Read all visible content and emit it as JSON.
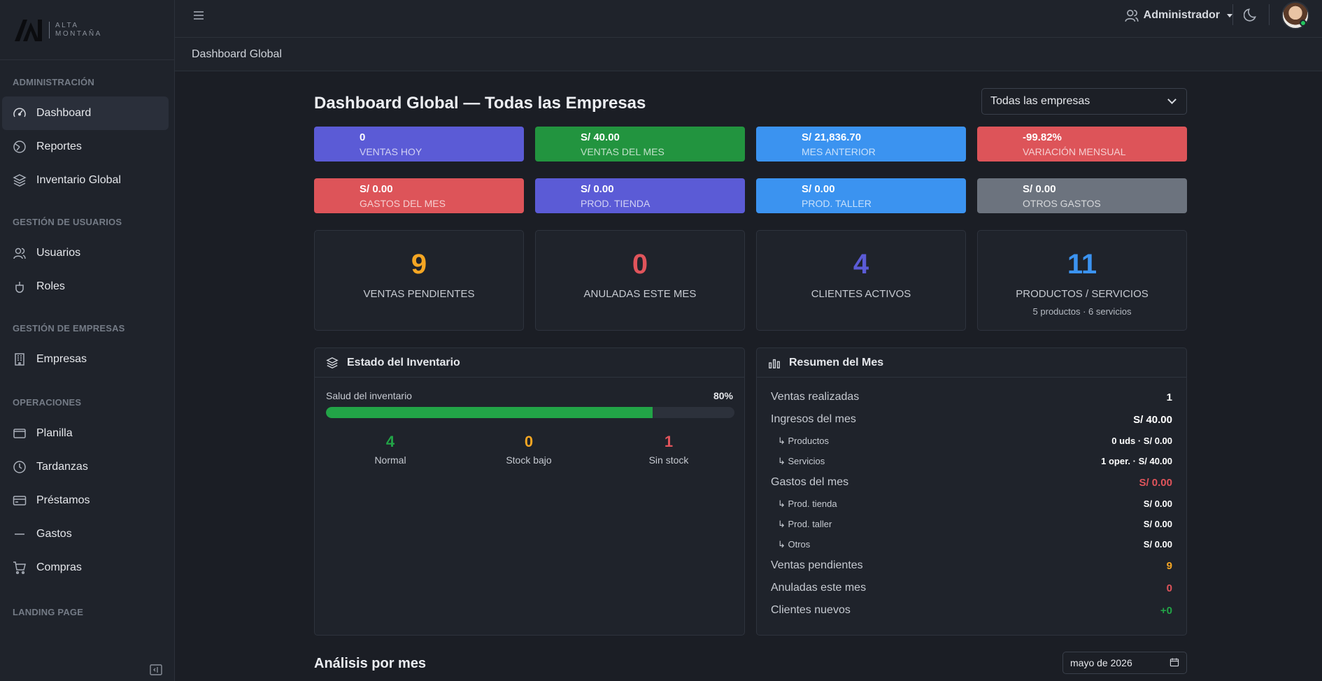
{
  "brand": {
    "line1": "ALTA",
    "line2": "MONTAÑA"
  },
  "sidebar": {
    "sections": [
      {
        "title": "ADMINISTRACIÓN",
        "items": [
          {
            "label": "Dashboard",
            "icon": "gauge-icon",
            "active": true
          },
          {
            "label": "Reportes",
            "icon": "pie-chart-icon"
          },
          {
            "label": "Inventario Global",
            "icon": "layers-icon"
          }
        ]
      },
      {
        "title": "GESTIÓN DE USUARIOS",
        "items": [
          {
            "label": "Usuarios",
            "icon": "users-icon"
          },
          {
            "label": "Roles",
            "icon": "mouse-icon"
          }
        ]
      },
      {
        "title": "GESTIÓN DE EMPRESAS",
        "items": [
          {
            "label": "Empresas",
            "icon": "building-icon"
          }
        ]
      },
      {
        "title": "OPERACIONES",
        "items": [
          {
            "label": "Planilla",
            "icon": "wallet-icon"
          },
          {
            "label": "Tardanzas",
            "icon": "clock-icon"
          },
          {
            "label": "Préstamos",
            "icon": "credit-card-icon"
          },
          {
            "label": "Gastos",
            "icon": "minus-icon"
          },
          {
            "label": "Compras",
            "icon": "cart-icon"
          }
        ]
      },
      {
        "title": "LANDING PAGE",
        "items": []
      }
    ]
  },
  "topbar": {
    "user_label": "Administrador"
  },
  "breadcrumb": "Dashboard Global",
  "main": {
    "title": "Dashboard Global — Todas las Empresas",
    "company_select": "Todas las empresas",
    "stats_row1": [
      {
        "value": "0",
        "label": "VENTAS HOY",
        "color": "#5b5bd6"
      },
      {
        "value": "S/ 40.00",
        "label": "VENTAS DEL MES",
        "color": "#22943f"
      },
      {
        "value": "S/ 21,836.70",
        "label": "MES ANTERIOR",
        "color": "#3b93f0"
      },
      {
        "value": "-99.82%",
        "label": "VARIACIÓN MENSUAL",
        "color": "#dd5459"
      }
    ],
    "stats_row2": [
      {
        "value": "S/ 0.00",
        "label": "GASTOS DEL MES",
        "color": "#dd5459"
      },
      {
        "value": "S/ 0.00",
        "label": "PROD. TIENDA",
        "color": "#5b5bd6"
      },
      {
        "value": "S/ 0.00",
        "label": "PROD. TALLER",
        "color": "#3b93f0"
      },
      {
        "value": "S/ 0.00",
        "label": "OTROS GASTOS",
        "color": "#6c737e"
      }
    ],
    "kpis": [
      {
        "value": "9",
        "label": "VENTAS PENDIENTES",
        "color": "#f5a623"
      },
      {
        "value": "0",
        "label": "ANULADAS ESTE MES",
        "color": "#e0545b"
      },
      {
        "value": "4",
        "label": "CLIENTES ACTIVOS",
        "color": "#5b5bd6"
      },
      {
        "value": "11",
        "label": "PRODUCTOS / SERVICIOS",
        "sub": "5 productos · 6 servicios",
        "color": "#3b93f0"
      }
    ],
    "inventory": {
      "title": "Estado del Inventario",
      "health_label": "Salud del inventario",
      "health_pct": "80%",
      "health_value": 0.8,
      "stats": [
        {
          "value": "4",
          "label": "Normal",
          "color": "#22a447"
        },
        {
          "value": "0",
          "label": "Stock bajo",
          "color": "#f5a623"
        },
        {
          "value": "1",
          "label": "Sin stock",
          "color": "#e0545b"
        }
      ]
    },
    "summary": {
      "title": "Resumen del Mes",
      "rows": [
        {
          "label": "Ventas realizadas",
          "value": "1",
          "kind": "main"
        },
        {
          "label": "Ingresos del mes",
          "value": "S/ 40.00",
          "kind": "main"
        },
        {
          "label": "↳ Productos",
          "value": "0 uds · S/ 0.00",
          "kind": "sub"
        },
        {
          "label": "↳ Servicios",
          "value": "1 oper. · S/ 40.00",
          "kind": "sub"
        },
        {
          "label": "Gastos del mes",
          "value": "S/ 0.00",
          "kind": "main",
          "color": "#e0545b"
        },
        {
          "label": "↳ Prod. tienda",
          "value": "S/ 0.00",
          "kind": "sub"
        },
        {
          "label": "↳ Prod. taller",
          "value": "S/ 0.00",
          "kind": "sub"
        },
        {
          "label": "↳ Otros",
          "value": "S/ 0.00",
          "kind": "sub"
        },
        {
          "label": "Ventas pendientes",
          "value": "9",
          "kind": "main",
          "color": "#f5a623"
        },
        {
          "label": "Anuladas este mes",
          "value": "0",
          "kind": "main",
          "color": "#e0545b"
        },
        {
          "label": "Clientes nuevos",
          "value": "+0",
          "kind": "main",
          "color": "#22a447"
        }
      ]
    },
    "analysis_title": "Análisis por mes",
    "month_value": "mayo de 2026"
  }
}
